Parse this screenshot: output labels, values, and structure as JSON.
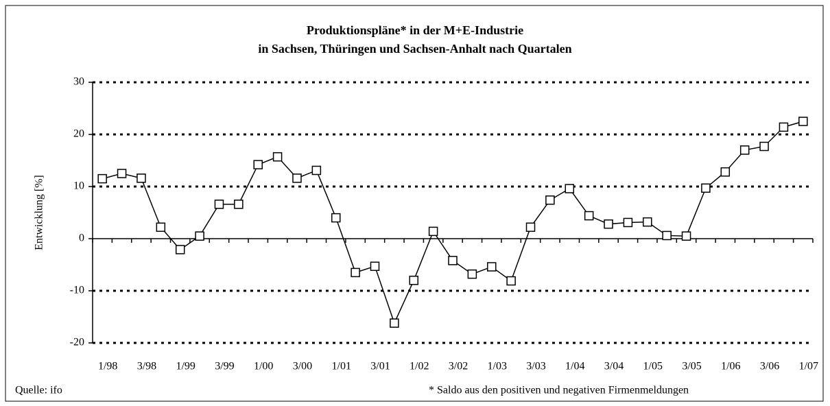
{
  "chart_data": {
    "type": "line",
    "title": [
      "Produktionspläne* in der M+E-Industrie",
      "in Sachsen, Thüringen und Sachsen-Anhalt nach Quartalen"
    ],
    "y_label": "Entwicklung [%]",
    "source": "Quelle: ifo",
    "note": "* Saldo aus den positiven und negativen Firmenmeldungen",
    "categories": [
      "1/98",
      null,
      "3/98",
      null,
      "1/99",
      null,
      "3/99",
      null,
      "1/00",
      null,
      "3/00",
      null,
      "1/01",
      null,
      "3/01",
      null,
      "1/02",
      null,
      "3/02",
      null,
      "1/03",
      null,
      "3/03",
      null,
      "1/04",
      null,
      "3/04",
      null,
      "1/05",
      null,
      "3/05",
      null,
      "1/06",
      null,
      "3/06",
      null,
      "1/07"
    ],
    "series": [
      {
        "color": "#000000",
        "values": [
          11.5,
          12.5,
          11.6,
          2.2,
          -2.1,
          0.5,
          6.6,
          6.6,
          14.2,
          15.7,
          11.6,
          13.1,
          4.0,
          -6.5,
          -5.3,
          -16.2,
          -8.0,
          1.4,
          -4.2,
          -6.8,
          -5.4,
          -8.1,
          2.2,
          7.4,
          9.6,
          4.4,
          2.8,
          3.1,
          3.2,
          0.6,
          0.5,
          9.7,
          12.8,
          17.0,
          17.7,
          21.4,
          22.5
        ]
      }
    ],
    "ylim": [
      -20,
      30
    ],
    "yticks": [
      -20,
      -10,
      0,
      10,
      20,
      30
    ],
    "grid": true
  }
}
